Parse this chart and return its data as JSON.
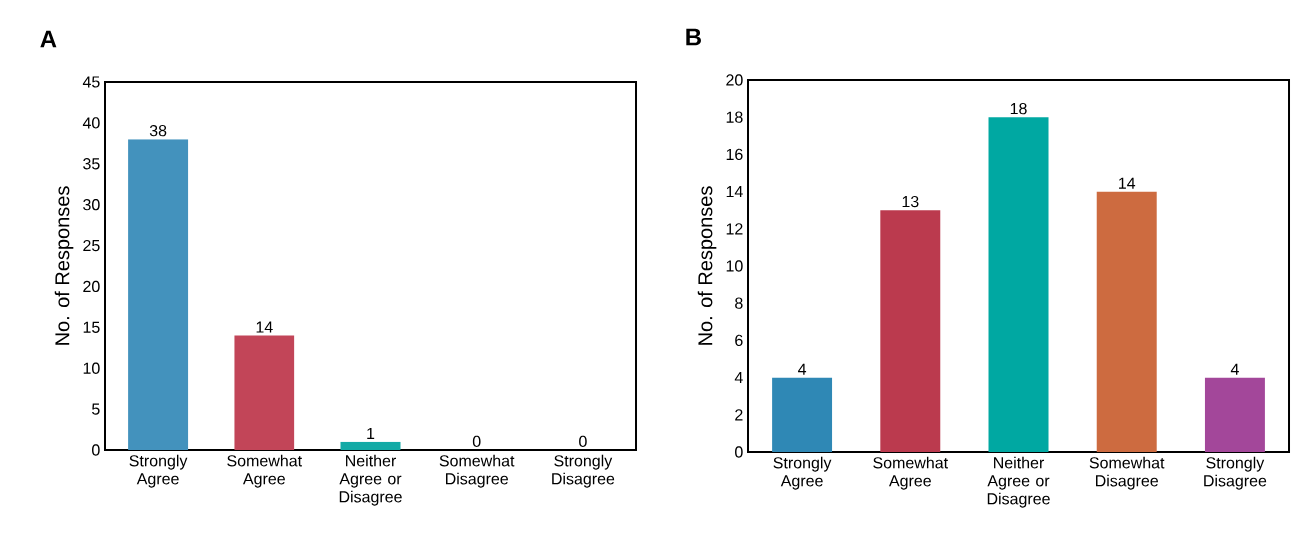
{
  "chart_data": [
    {
      "type": "bar",
      "title": "A",
      "ylabel": "No. of Responses",
      "categories": [
        "Strongly Agree",
        "Somewhat Agree",
        "Neither Agree or Disagree",
        "Somewhat Disagree",
        "Strongly Disagree"
      ],
      "values": [
        38,
        14,
        1,
        0,
        0
      ],
      "value_labels": [
        "38",
        "14",
        "1",
        "0",
        "0"
      ],
      "colors": [
        "#4392bd",
        "#c24558",
        "#13aaa6",
        "#cd6b40",
        "#a3479a"
      ],
      "ylim": [
        0,
        45
      ],
      "yticks": [
        0,
        5,
        10,
        15,
        20,
        25,
        30,
        35,
        40,
        45
      ]
    },
    {
      "type": "bar",
      "title": "B",
      "ylabel": "No. of Responses",
      "categories": [
        "Strongly Agree",
        "Somewhat Agree",
        "Neither Agree or Disagree",
        "Somewhat Disagree",
        "Strongly Disagree"
      ],
      "values": [
        4,
        13,
        18,
        14,
        4
      ],
      "value_labels": [
        "4",
        "13",
        "18",
        "14",
        "4"
      ],
      "colors": [
        "#2f88b5",
        "#bb3a4e",
        "#00a8a2",
        "#cd6b40",
        "#a3479a"
      ],
      "ylim": [
        0,
        20
      ],
      "yticks": [
        0,
        2,
        4,
        6,
        8,
        10,
        12,
        14,
        16,
        18,
        20
      ]
    }
  ]
}
